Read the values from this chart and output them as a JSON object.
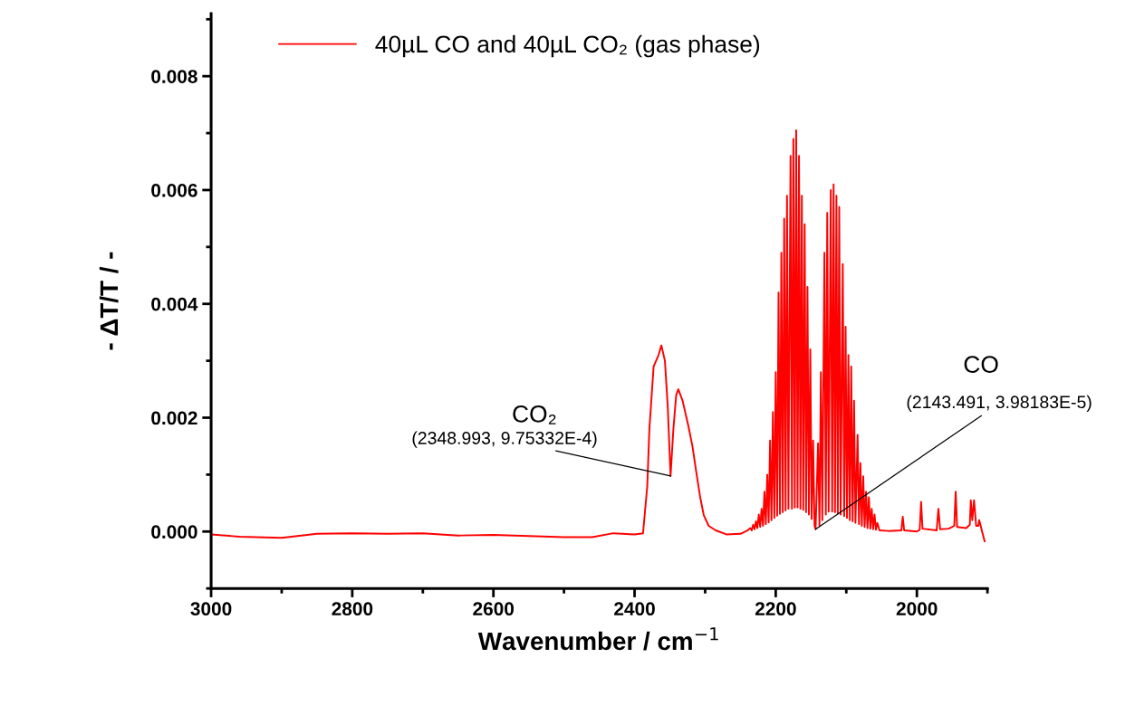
{
  "chart_data": {
    "type": "line",
    "xlabel": "Wavenumber / cm$^{−1}$",
    "ylabel": "- ΔT/T / -",
    "xlim": [
      3000,
      1900
    ],
    "ylim": [
      -0.001,
      0.0091
    ],
    "xticks": [
      3000,
      {
        "value": 2900,
        "label": null
      },
      2800,
      {
        "value": 2700,
        "label": null
      },
      2600,
      {
        "value": 2500,
        "label": null
      },
      2400,
      {
        "value": 2300,
        "label": null
      },
      2200,
      {
        "value": 2100,
        "label": null
      },
      2000,
      {
        "value": 1900,
        "label": null
      }
    ],
    "yticks": [
      {
        "value": -0.001,
        "label": null
      },
      {
        "value": 0,
        "label": "0.000"
      },
      {
        "value": 0.001,
        "label": null
      },
      {
        "value": 0.002,
        "label": "0.002"
      },
      {
        "value": 0.003,
        "label": null
      },
      {
        "value": 0.004,
        "label": "0.004"
      },
      {
        "value": 0.005,
        "label": null
      },
      {
        "value": 0.006,
        "label": "0.006"
      },
      {
        "value": 0.007,
        "label": null
      },
      {
        "value": 0.008,
        "label": "0.008"
      },
      {
        "value": 0.009,
        "label": null
      }
    ],
    "grid": false,
    "legend": "top left",
    "marker": "none",
    "line_style": "solid",
    "annotations": [
      "CO₂",
      "CO",
      {
        "text": "(2348.993, 9.75332E-4)",
        "x": 2348.993,
        "y": 0.000975332
      },
      {
        "text": "(2143.491, 3.98183E-5)",
        "x": 2143.491,
        "y": 3.98183e-05
      }
    ],
    "series": [
      {
        "name": "40µL CO and 40µL CO₂ (gas phase)",
        "color": "#ff0000",
        "x": [
          3000,
          2960,
          2900,
          2850,
          2800,
          2750,
          2700,
          2650,
          2600,
          2550,
          2500,
          2460,
          2430,
          2400,
          2388,
          2382,
          2379,
          2373,
          2366,
          2362,
          2357,
          2353,
          2348.993,
          2345,
          2341,
          2338,
          2332,
          2324,
          2318,
          2313,
          2307,
          2302,
          2295,
          2285,
          2270,
          2250,
          2240,
          2236,
          2234,
          2232,
          2230,
          2228,
          2226,
          2224,
          2222,
          2220,
          2218,
          2216,
          2214,
          2212,
          2210,
          2208,
          2206,
          2204,
          2202,
          2200,
          2198,
          2196,
          2194,
          2192,
          2190,
          2188,
          2186,
          2184,
          2182,
          2179,
          2177,
          2175,
          2173,
          2171,
          2169,
          2167,
          2165,
          2163,
          2161,
          2159,
          2157,
          2155,
          2153,
          2151,
          2149,
          2147,
          2145,
          2143.491,
          2140,
          2138,
          2136,
          2134,
          2131,
          2129,
          2127,
          2125,
          2122,
          2120,
          2118,
          2116,
          2114,
          2112,
          2110,
          2108,
          2105,
          2103,
          2101,
          2099,
          2097,
          2095,
          2093,
          2091,
          2089,
          2087,
          2084,
          2082,
          2080,
          2078,
          2076,
          2074,
          2072,
          2070,
          2068,
          2066,
          2064,
          2062,
          2060,
          2058,
          2056,
          2053,
          2040,
          2022,
          2020,
          2018,
          2000,
          1996,
          1994,
          1992,
          1972,
          1969.5,
          1967,
          1955,
          1947,
          1945,
          1943,
          1930,
          1925,
          1923.6,
          1921.5,
          1919,
          1916,
          1913,
          1911.6,
          1908,
          1904
        ],
        "values": [
          -5e-05,
          -9e-05,
          -0.00011,
          -4e-05,
          -3e-05,
          -4e-05,
          -3e-05,
          -7e-05,
          -6e-05,
          -8e-05,
          -0.0001,
          -0.0001,
          -3e-05,
          -5e-05,
          -3e-05,
          0.0008,
          0.0018,
          0.0029,
          0.0031,
          0.00327,
          0.003,
          0.0022,
          0.000975332,
          0.0018,
          0.0024,
          0.0025,
          0.0023,
          0.00187,
          0.0015,
          0.00108,
          0.0006,
          0.00029,
          0.0001,
          2e-05,
          -5e-05,
          -4e-05,
          2e-05,
          6e-05,
          2e-05,
          0.00012,
          4e-05,
          0.00018,
          6e-05,
          0.0003,
          8e-05,
          0.0004,
          0.0001,
          0.0007,
          0.00013,
          0.001,
          0.00016,
          0.0016,
          0.0002,
          0.0021,
          0.00024,
          0.0028,
          0.00028,
          0.0042,
          0.00031,
          0.0049,
          0.00034,
          0.0055,
          0.00037,
          0.0059,
          0.0004,
          0.0066,
          0.0004,
          0.0069,
          0.00042,
          0.00705,
          0.00042,
          0.0066,
          0.0004,
          0.0059,
          0.00038,
          0.0054,
          0.00034,
          0.0043,
          0.0003,
          0.0032,
          0.00022,
          0.0016,
          0.0001,
          3.98183e-05,
          0.00155,
          0.0001,
          0.0028,
          0.0002,
          0.0049,
          0.0003,
          0.0056,
          0.00035,
          0.006,
          0.00035,
          0.0061,
          0.00034,
          0.0059,
          0.00032,
          0.0057,
          0.0003,
          0.0047,
          0.00027,
          0.0036,
          0.00024,
          0.0031,
          0.0002,
          0.0029,
          0.00018,
          0.0023,
          0.00015,
          0.0017,
          0.00013,
          0.0012,
          0.0001,
          0.00097,
          8e-05,
          0.0007,
          6e-05,
          0.0006,
          5e-05,
          0.0004,
          4e-05,
          0.0003,
          3e-05,
          0.00015,
          2e-05,
          1e-05,
          2e-05,
          0.00026,
          2e-05,
          0.0,
          3e-05,
          0.00052,
          5e-05,
          2e-05,
          0.0004,
          4e-05,
          5e-05,
          0.0001,
          0.0007,
          8e-05,
          6e-05,
          0.00012,
          0.00055,
          0.0002,
          0.00055,
          0.0001,
          0.0001,
          0.0002,
          2e-05,
          -0.00017
        ]
      }
    ]
  }
}
